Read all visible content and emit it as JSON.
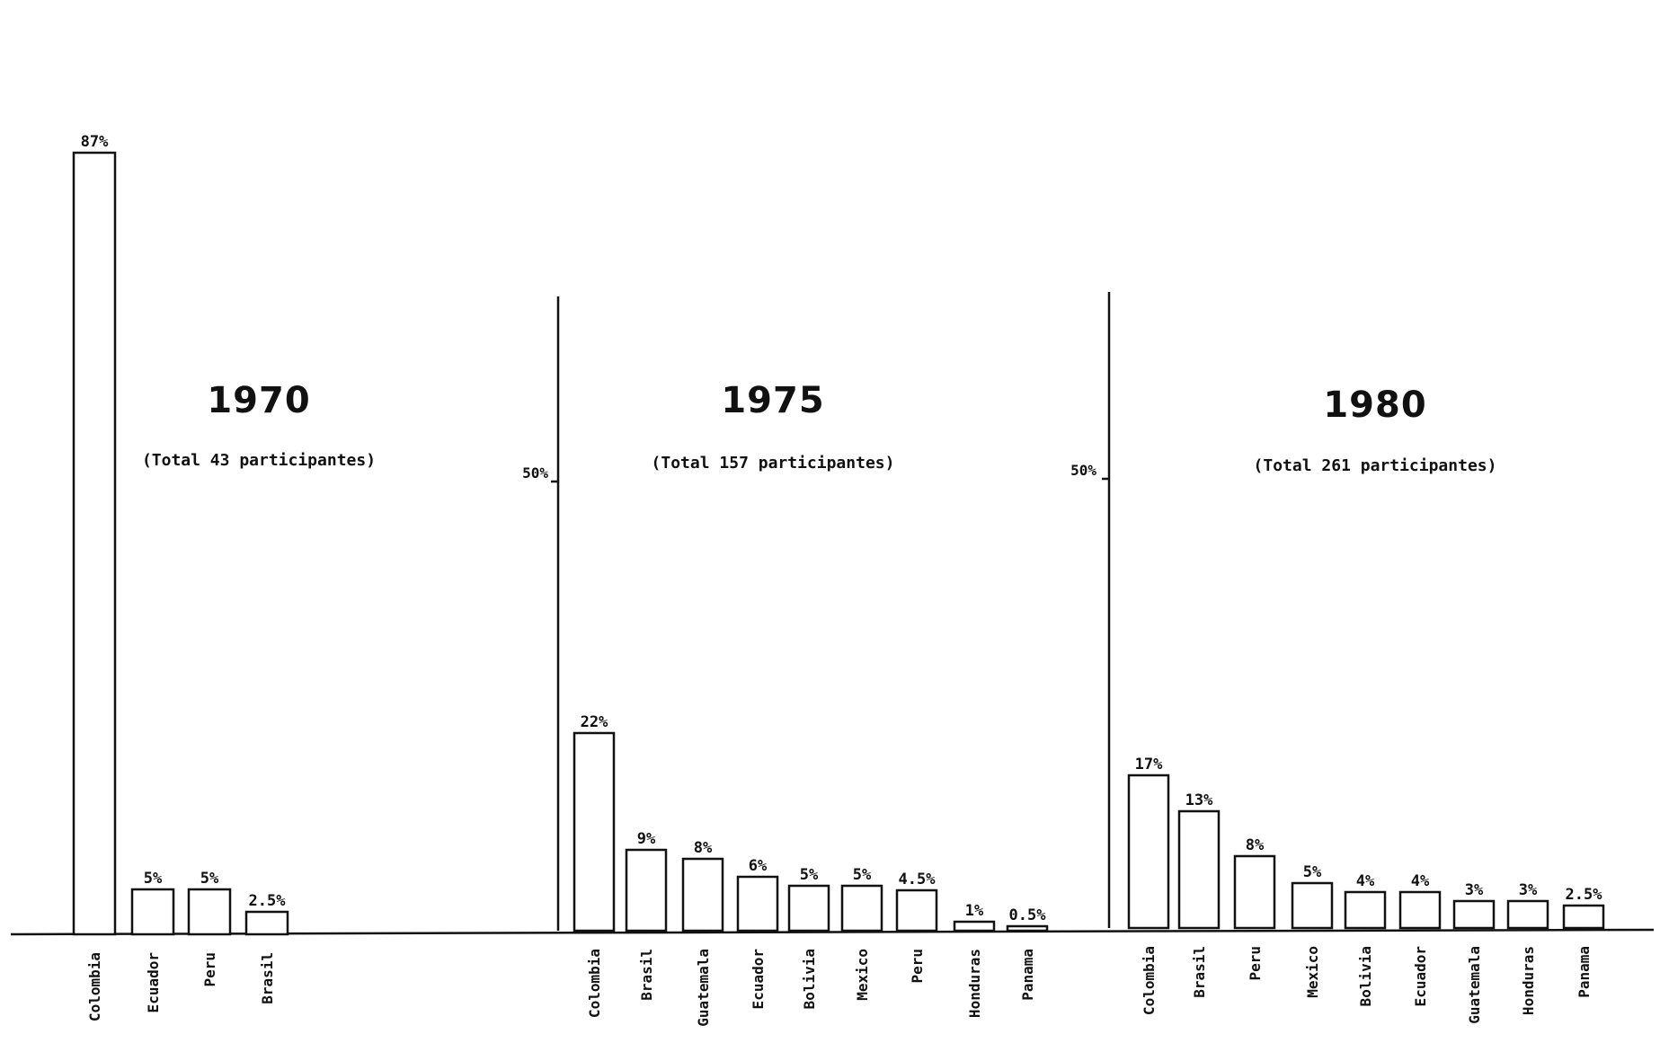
{
  "chart_data": [
    {
      "type": "bar",
      "title": "1970",
      "subtitle": "(Total 43 participantes)",
      "categories": [
        "Colombia",
        "Ecuador",
        "Peru",
        "Brasil"
      ],
      "values": [
        87,
        5,
        5,
        2.5
      ],
      "value_labels": [
        "87%",
        "5%",
        "5%",
        "2.5%"
      ],
      "ylim": [
        0,
        90
      ],
      "ytick_label": "",
      "axis_line": false
    },
    {
      "type": "bar",
      "title": "1975",
      "subtitle": "(Total 157 participantes)",
      "categories": [
        "Colombia",
        "Brasil",
        "Guatemala",
        "Ecuador",
        "Bolivia",
        "Mexico",
        "Peru",
        "Honduras",
        "Panama"
      ],
      "values": [
        22,
        9,
        8,
        6,
        5,
        5,
        4.5,
        1,
        0.5
      ],
      "value_labels": [
        "22%",
        "9%",
        "8%",
        "6%",
        "5%",
        "5%",
        "4.5%",
        "1%",
        "0.5%"
      ],
      "ylim": [
        0,
        90
      ],
      "ytick_value": 50,
      "ytick_label": "50%",
      "axis_line": true
    },
    {
      "type": "bar",
      "title": "1980",
      "subtitle": "(Total 261 participantes)",
      "categories": [
        "Colombia",
        "Brasil",
        "Peru",
        "Mexico",
        "Bolivia",
        "Ecuador",
        "Guatemala",
        "Honduras",
        "Panama"
      ],
      "values": [
        17,
        13,
        8,
        5,
        4,
        4,
        3,
        3,
        2.5
      ],
      "value_labels": [
        "17%",
        "13%",
        "8%",
        "5%",
        "4%",
        "4%",
        "3%",
        "3%",
        "2.5%"
      ],
      "ylim": [
        0,
        90
      ],
      "ytick_value": 50,
      "ytick_label": "50%",
      "axis_line": true
    }
  ]
}
